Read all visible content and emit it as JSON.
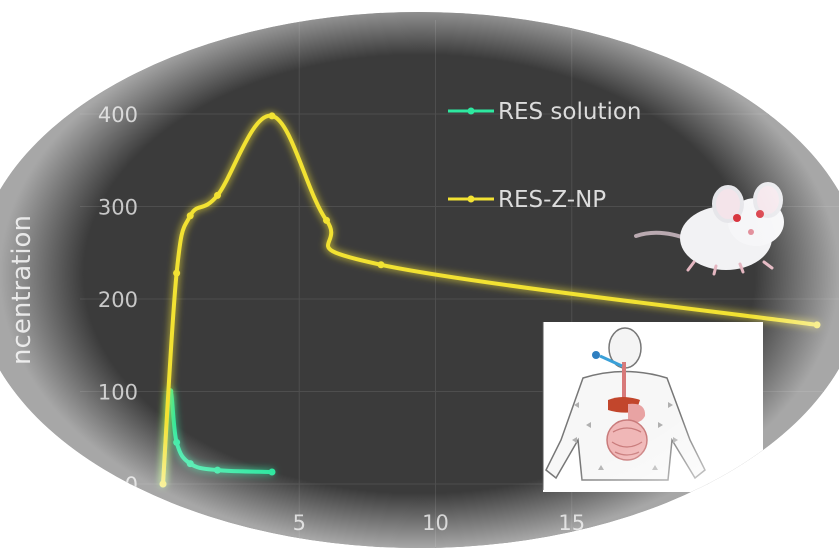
{
  "chart_data": {
    "type": "line",
    "title": "",
    "xlabel": "",
    "ylabel": "ncentration",
    "xlim": [
      0,
      24
    ],
    "ylim": [
      0,
      400
    ],
    "x_ticks": [
      5,
      10,
      15
    ],
    "y_ticks": [
      0,
      100,
      200,
      300,
      400
    ],
    "grid": true,
    "legend_position": "top-right",
    "series": [
      {
        "name": "RES solution",
        "color": "#2ee8a0",
        "x": [
          0,
          0.25,
          0.5,
          1,
          2,
          4
        ],
        "y": [
          0,
          100,
          45,
          22,
          15,
          13
        ]
      },
      {
        "name": "RES-Z-NP",
        "color": "#f2e233",
        "x": [
          0,
          0.5,
          1,
          2,
          4,
          6,
          8,
          24
        ],
        "y": [
          0,
          228,
          290,
          312,
          398,
          285,
          237,
          172
        ]
      }
    ]
  },
  "icons": {
    "mouse": "mouse-illustration",
    "body": "human-digestive-system-illustration"
  }
}
